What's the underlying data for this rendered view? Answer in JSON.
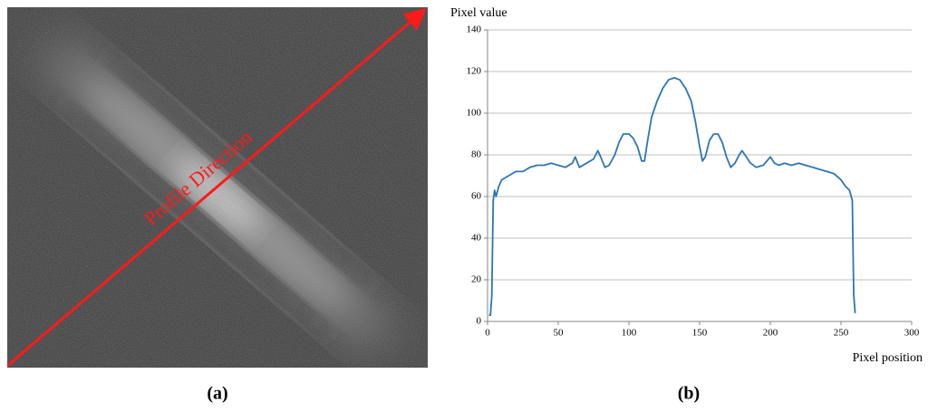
{
  "panel_a": {
    "label": "(a)",
    "annotation": "Profile Direction"
  },
  "chart_data": {
    "type": "line",
    "panel_label": "(b)",
    "y_label": "Pixel value",
    "x_label": "Pixel position",
    "x": [
      1,
      2,
      3,
      4,
      5,
      6,
      8,
      10,
      15,
      20,
      25,
      30,
      35,
      40,
      45,
      50,
      55,
      60,
      62,
      65,
      70,
      75,
      78,
      80,
      83,
      86,
      90,
      93,
      96,
      100,
      103,
      106,
      109,
      111,
      113,
      116,
      120,
      124,
      128,
      132,
      136,
      140,
      144,
      147,
      150,
      152,
      154,
      157,
      160,
      163,
      166,
      169,
      172,
      175,
      178,
      180,
      183,
      186,
      190,
      195,
      200,
      203,
      206,
      210,
      215,
      220,
      225,
      230,
      235,
      240,
      245,
      250,
      253,
      256,
      258,
      259,
      260
    ],
    "values": [
      3,
      3,
      12,
      58,
      63,
      60,
      65,
      68,
      70,
      72,
      72,
      74,
      75,
      75,
      76,
      75,
      74,
      76,
      79,
      74,
      76,
      78,
      82,
      79,
      74,
      75,
      80,
      86,
      90,
      90,
      88,
      84,
      77,
      77,
      86,
      98,
      106,
      112,
      116,
      117,
      116,
      112,
      106,
      96,
      84,
      77,
      79,
      87,
      90,
      90,
      86,
      79,
      74,
      76,
      80,
      82,
      79,
      76,
      74,
      75,
      79,
      76,
      75,
      76,
      75,
      76,
      75,
      74,
      73,
      72,
      71,
      68,
      65,
      63,
      58,
      13,
      4
    ],
    "color": "#2e75b6",
    "xlim": [
      0,
      300
    ],
    "xticks": [
      0,
      50,
      100,
      150,
      200,
      250,
      300
    ],
    "ylim": [
      0,
      140
    ],
    "yticks": [
      0,
      20,
      40,
      60,
      80,
      100,
      120,
      140
    ],
    "grid": true
  }
}
